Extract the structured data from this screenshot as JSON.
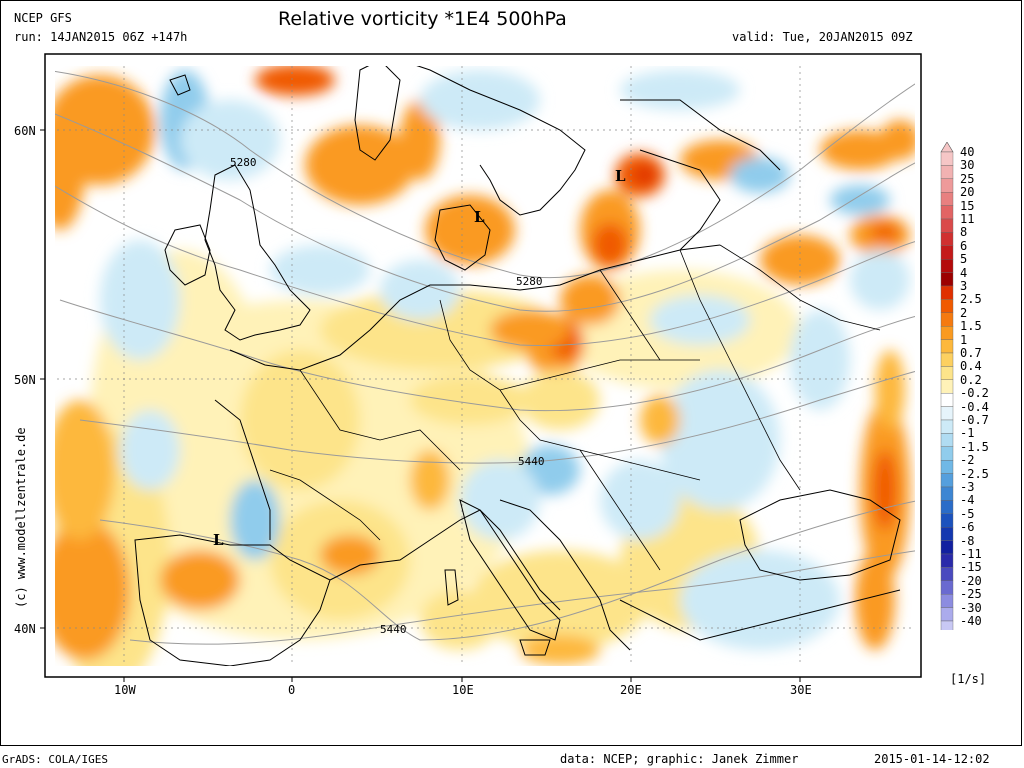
{
  "header": {
    "model": "NCEP GFS",
    "run": "run: 14JAN2015 06Z +147h",
    "title": "Relative vorticity *1E4 500hPa",
    "valid": "valid: Tue, 20JAN2015 09Z"
  },
  "axes": {
    "lat_labels": [
      "60N",
      "50N",
      "40N"
    ],
    "lon_labels": [
      "10W",
      "0",
      "10E",
      "20E",
      "30E"
    ]
  },
  "annotations": {
    "contours": [
      "5280",
      "5280",
      "5440",
      "5440"
    ],
    "lows": [
      "L",
      "L",
      "L"
    ]
  },
  "colorbar": {
    "unit": "[1/s]",
    "labels": [
      "40",
      "30",
      "25",
      "20",
      "15",
      "11",
      "8",
      "6",
      "5",
      "4",
      "3",
      "2.5",
      "2",
      "1.5",
      "1",
      "0.7",
      "0.4",
      "0.2",
      "-0.2",
      "-0.4",
      "-0.7",
      "-1",
      "-1.5",
      "-2",
      "-2.5",
      "-3",
      "-4",
      "-5",
      "-6",
      "-8",
      "-11",
      "-15",
      "-20",
      "-25",
      "-30",
      "-40"
    ],
    "colors": [
      "#f6c6c6",
      "#f2b2b2",
      "#ee9a9a",
      "#e88080",
      "#e26464",
      "#da4a4a",
      "#d03030",
      "#c41a1a",
      "#b40a0a",
      "#9c0000",
      "#e03000",
      "#f05a00",
      "#f57a10",
      "#fa9a20",
      "#fdb83c",
      "#fdd060",
      "#fde48a",
      "#fff2b8",
      "#ffffff",
      "#e6f4fb",
      "#cdeaf7",
      "#b0dcf2",
      "#90ccec",
      "#70b8e6",
      "#559fdd",
      "#3d86d3",
      "#2a6cc8",
      "#1c52bd",
      "#1438b0",
      "#1220a0",
      "#2a2aaa",
      "#4a4abf",
      "#6a6ad0",
      "#8c8ce0",
      "#ababec",
      "#c8c8f4"
    ]
  },
  "footer": {
    "left": "GrADS: COLA/IGES",
    "data": "data: NCEP; graphic: Janek Zimmer",
    "timestamp": "2015-01-14-12:02",
    "side_credit": "(c) www.modellzentrale.de"
  }
}
